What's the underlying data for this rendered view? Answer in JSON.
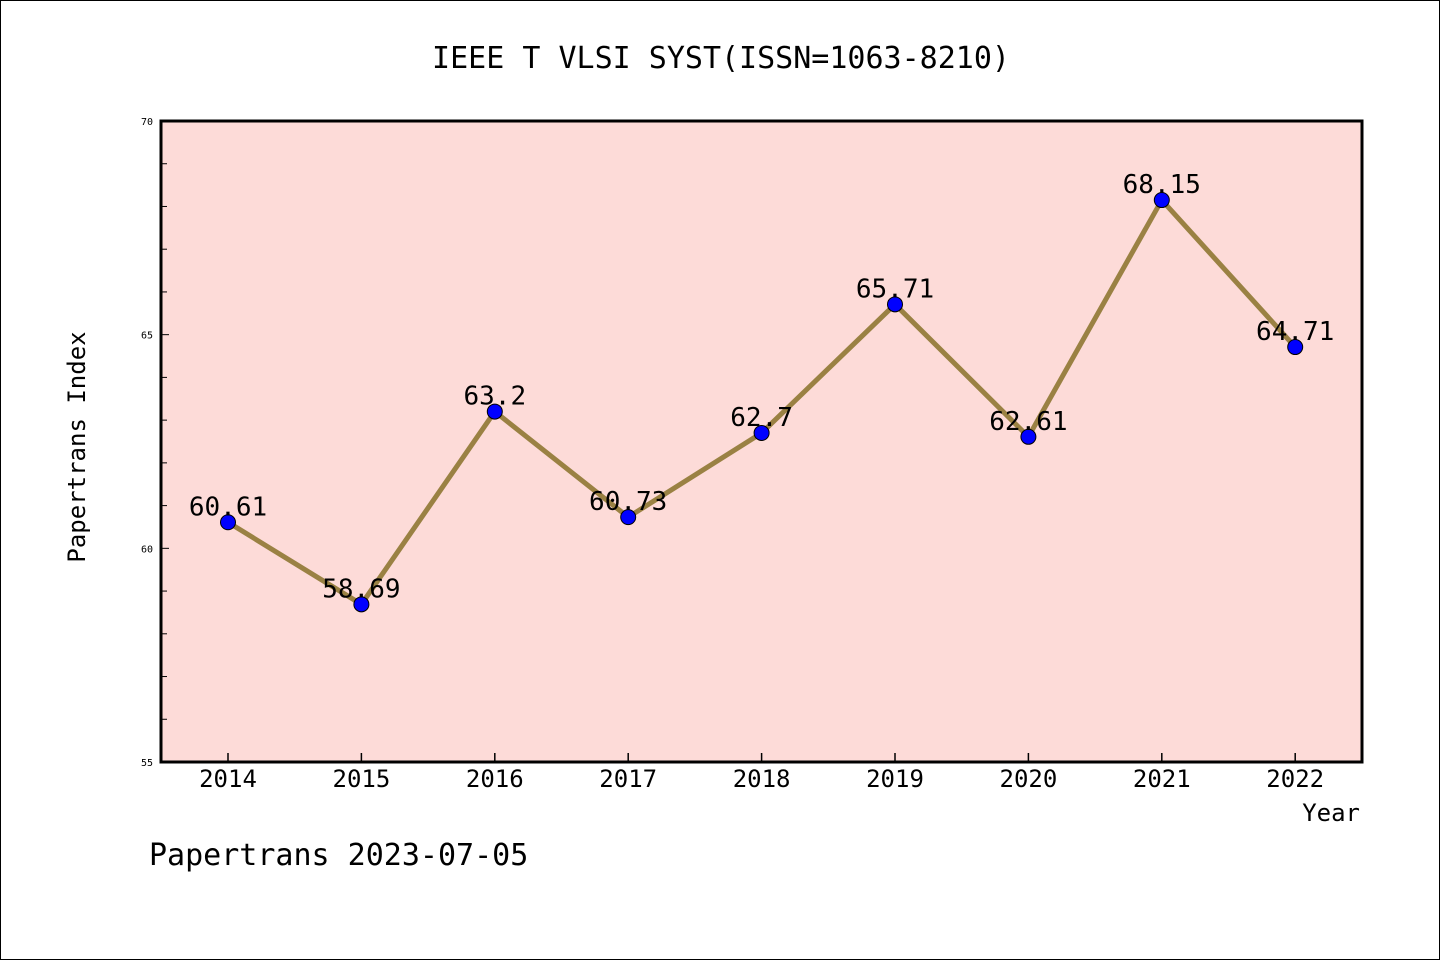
{
  "chart_data": {
    "type": "line",
    "title": "IEEE T VLSI SYST(ISSN=1063-8210)",
    "xlabel": "Year",
    "ylabel": "Papertrans Index",
    "categories": [
      "2014",
      "2015",
      "2016",
      "2017",
      "2018",
      "2019",
      "2020",
      "2021",
      "2022"
    ],
    "values": [
      60.61,
      58.69,
      63.2,
      60.73,
      62.7,
      65.71,
      62.61,
      68.15,
      64.71
    ],
    "data_labels": [
      "60.61",
      "58.69",
      "63.2",
      "60.73",
      "62.7",
      "65.71",
      "62.61",
      "68.15",
      "64.71"
    ],
    "ylim": [
      55,
      70
    ],
    "y_major_ticks": [
      "55",
      "60",
      "65",
      "70"
    ],
    "y_minor_step": 1,
    "grid": false,
    "legend": "none",
    "colors": {
      "plot_background": "#fddbd8",
      "line": "#9a8143",
      "marker": "#0000ff"
    },
    "footer": "Papertrans 2023-07-05"
  }
}
